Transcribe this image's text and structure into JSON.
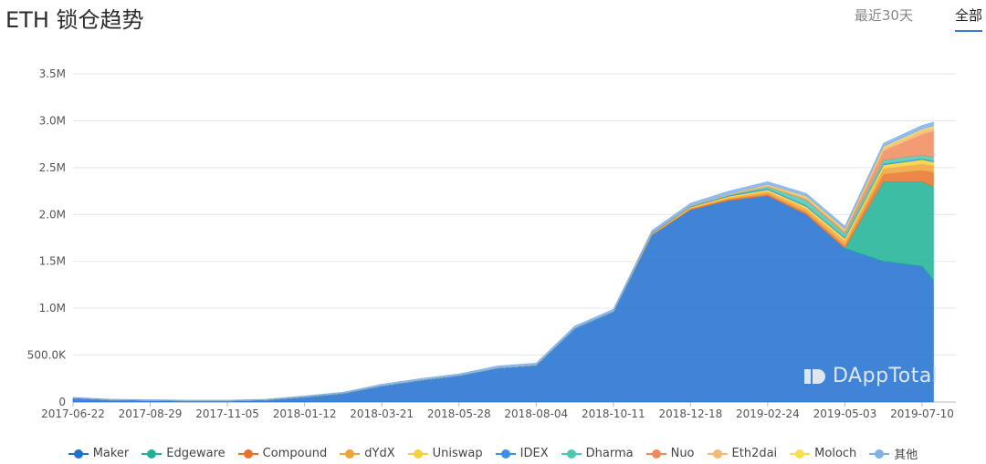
{
  "header": {
    "title": "ETH 锁仓趋势",
    "tabs": [
      {
        "label": "最近30天",
        "active": false
      },
      {
        "label": "全部",
        "active": true
      }
    ]
  },
  "watermark": "DAppTotal",
  "chart_data": {
    "type": "area",
    "stacked": true,
    "title": "ETH 锁仓趋势",
    "ylim": [
      0,
      3500000
    ],
    "yticks": [
      0,
      500000,
      1000000,
      1500000,
      2000000,
      2500000,
      3000000,
      3500000
    ],
    "ytick_labels": [
      "0",
      "500.0K",
      "1.0M",
      "1.5M",
      "2.0M",
      "2.5M",
      "3.0M",
      "3.5M"
    ],
    "x": [
      "2017-06-22",
      "2017-07-26",
      "2017-08-29",
      "2017-10-02",
      "2017-11-05",
      "2017-12-09",
      "2018-01-12",
      "2018-02-15",
      "2018-03-21",
      "2018-04-24",
      "2018-05-28",
      "2018-07-01",
      "2018-08-04",
      "2018-09-07",
      "2018-10-11",
      "2018-11-14",
      "2018-12-18",
      "2019-01-21",
      "2019-02-24",
      "2019-03-30",
      "2019-05-03",
      "2019-06-06",
      "2019-07-10",
      "2019-07-20"
    ],
    "xtick_labels": [
      "2017-06-22",
      "2017-08-29",
      "2017-11-05",
      "2018-01-12",
      "2018-03-21",
      "2018-05-28",
      "2018-08-04",
      "2018-10-11",
      "2018-12-18",
      "2019-02-24",
      "2019-05-03",
      "2019-07-10"
    ],
    "legend_position": "bottom",
    "series": [
      {
        "name": "Maker",
        "color": "#1f6fd1",
        "values": [
          40000,
          20000,
          15000,
          10000,
          10000,
          20000,
          50000,
          90000,
          170000,
          230000,
          280000,
          360000,
          390000,
          780000,
          960000,
          1780000,
          2050000,
          2150000,
          2200000,
          2000000,
          1640000,
          1500000,
          1450000,
          1300000
        ]
      },
      {
        "name": "Edgeware",
        "color": "#1bb394",
        "values": [
          0,
          0,
          0,
          0,
          0,
          0,
          0,
          0,
          0,
          0,
          0,
          0,
          0,
          0,
          0,
          0,
          0,
          0,
          0,
          0,
          0,
          850000,
          900000,
          1000000
        ]
      },
      {
        "name": "Compound",
        "color": "#e8722c",
        "values": [
          0,
          0,
          0,
          0,
          0,
          0,
          0,
          0,
          0,
          0,
          0,
          0,
          0,
          0,
          0,
          5000,
          10000,
          15000,
          20000,
          25000,
          30000,
          80000,
          120000,
          150000
        ]
      },
      {
        "name": "dYdX",
        "color": "#f0a33a",
        "values": [
          0,
          0,
          0,
          0,
          0,
          0,
          0,
          0,
          0,
          0,
          0,
          0,
          0,
          0,
          0,
          5000,
          10000,
          15000,
          25000,
          35000,
          45000,
          60000,
          70000,
          70000
        ]
      },
      {
        "name": "Uniswap",
        "color": "#f5d13a",
        "values": [
          0,
          0,
          0,
          0,
          0,
          0,
          0,
          0,
          0,
          0,
          0,
          0,
          0,
          0,
          0,
          5000,
          10000,
          15000,
          20000,
          25000,
          30000,
          40000,
          45000,
          40000
        ]
      },
      {
        "name": "IDEX",
        "color": "#3d8ee8",
        "values": [
          5000,
          5000,
          5000,
          5000,
          5000,
          5000,
          5000,
          5000,
          5000,
          5000,
          5000,
          5000,
          5000,
          10000,
          10000,
          10000,
          10000,
          10000,
          10000,
          10000,
          10000,
          10000,
          10000,
          10000
        ]
      },
      {
        "name": "Dharma",
        "color": "#48c9b0",
        "values": [
          0,
          0,
          0,
          0,
          0,
          0,
          0,
          0,
          0,
          0,
          0,
          0,
          0,
          0,
          0,
          0,
          0,
          5000,
          20000,
          60000,
          40000,
          40000,
          40000,
          40000
        ]
      },
      {
        "name": "Nuo",
        "color": "#f08a5d",
        "values": [
          0,
          0,
          0,
          0,
          0,
          0,
          0,
          0,
          0,
          0,
          0,
          0,
          0,
          0,
          0,
          0,
          0,
          0,
          5000,
          10000,
          20000,
          100000,
          220000,
          280000
        ]
      },
      {
        "name": "Eth2dai",
        "color": "#f5b971",
        "values": [
          0,
          0,
          0,
          0,
          0,
          0,
          0,
          0,
          0,
          0,
          0,
          0,
          0,
          0,
          0,
          0,
          5000,
          10000,
          15000,
          20000,
          20000,
          30000,
          40000,
          40000
        ]
      },
      {
        "name": "Moloch",
        "color": "#f9e04b",
        "values": [
          0,
          0,
          0,
          0,
          0,
          0,
          0,
          0,
          0,
          0,
          0,
          0,
          0,
          0,
          0,
          0,
          0,
          0,
          5000,
          10000,
          10000,
          15000,
          15000,
          15000
        ]
      },
      {
        "name": "其他",
        "color": "#7fb0ea",
        "values": [
          5000,
          5000,
          5000,
          5000,
          5000,
          5000,
          10000,
          10000,
          15000,
          15000,
          15000,
          20000,
          20000,
          20000,
          20000,
          25000,
          25000,
          30000,
          30000,
          30000,
          30000,
          35000,
          40000,
          40000
        ]
      }
    ]
  }
}
